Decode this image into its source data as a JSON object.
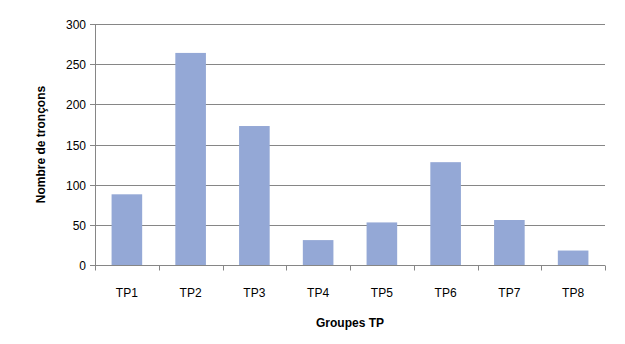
{
  "chart_data": {
    "type": "bar",
    "x_label": "Groupes TP",
    "y_label": "Nombre de tronçons",
    "categories": [
      "TP1",
      "TP2",
      "TP3",
      "TP4",
      "TP5",
      "TP6",
      "TP7",
      "TP8"
    ],
    "values": [
      88,
      264,
      173,
      31,
      53,
      128,
      56,
      18
    ],
    "color": "#94a8d6",
    "ylim": [
      0,
      300
    ],
    "yticks": [
      0,
      50,
      100,
      150,
      200,
      250,
      300
    ],
    "grid": true
  }
}
